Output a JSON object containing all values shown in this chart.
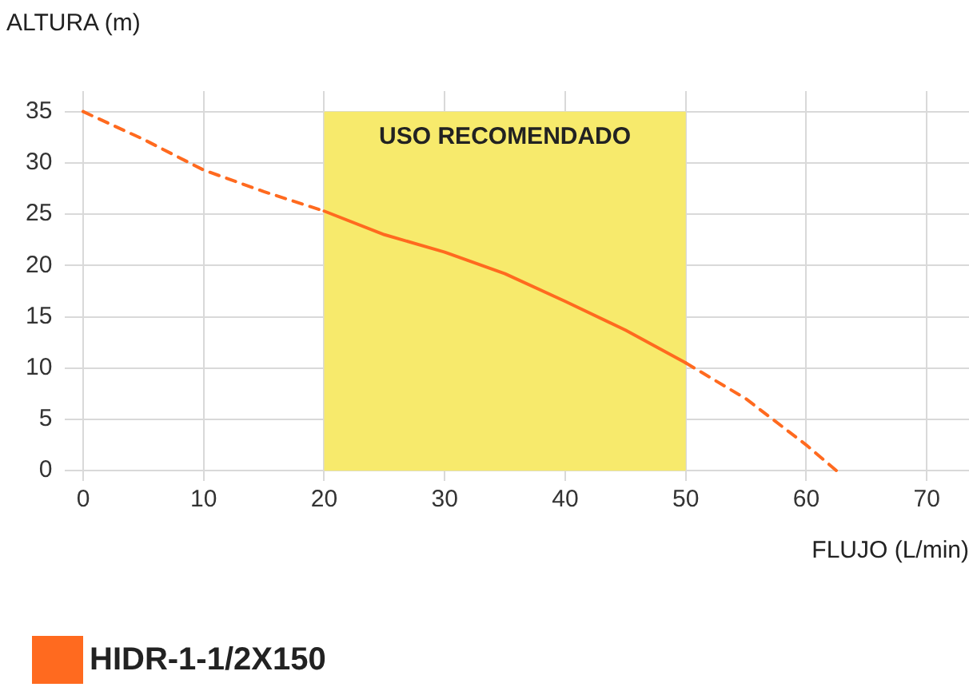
{
  "chart_data": {
    "type": "line",
    "xlabel": "FLUJO (L/min)",
    "ylabel": "ALTURA (m)",
    "x": [
      0,
      5,
      10,
      15,
      20,
      25,
      30,
      35,
      40,
      45,
      50,
      55,
      60,
      62.5
    ],
    "series": [
      {
        "name": "HIDR-1-1/2X150",
        "color": "#ff6a1f",
        "line_style": "solid",
        "values": [
          null,
          null,
          null,
          null,
          25.3,
          23,
          21.3,
          19.2,
          16.5,
          13.7,
          10.5,
          null,
          null,
          null
        ]
      },
      {
        "color": "#ff6a1f",
        "line_style": "dashed",
        "values": [
          35,
          32.3,
          29.3,
          27.2,
          25.3,
          null,
          null,
          null,
          null,
          null,
          10.5,
          7,
          2.5,
          0
        ]
      }
    ],
    "xlim": [
      -1.5,
      73.5
    ],
    "ylim": [
      -1,
      37
    ],
    "xticks": [
      0,
      10,
      20,
      30,
      40,
      50,
      60,
      70
    ],
    "yticks": [
      0,
      5,
      10,
      15,
      20,
      25,
      30,
      35
    ],
    "bands": [
      {
        "axis": "x",
        "from": 20,
        "to": 50,
        "label": "USO RECOMENDADO",
        "color": "#f7ea6c"
      }
    ],
    "grid": true,
    "legend": "bottom left",
    "marker": "none"
  }
}
